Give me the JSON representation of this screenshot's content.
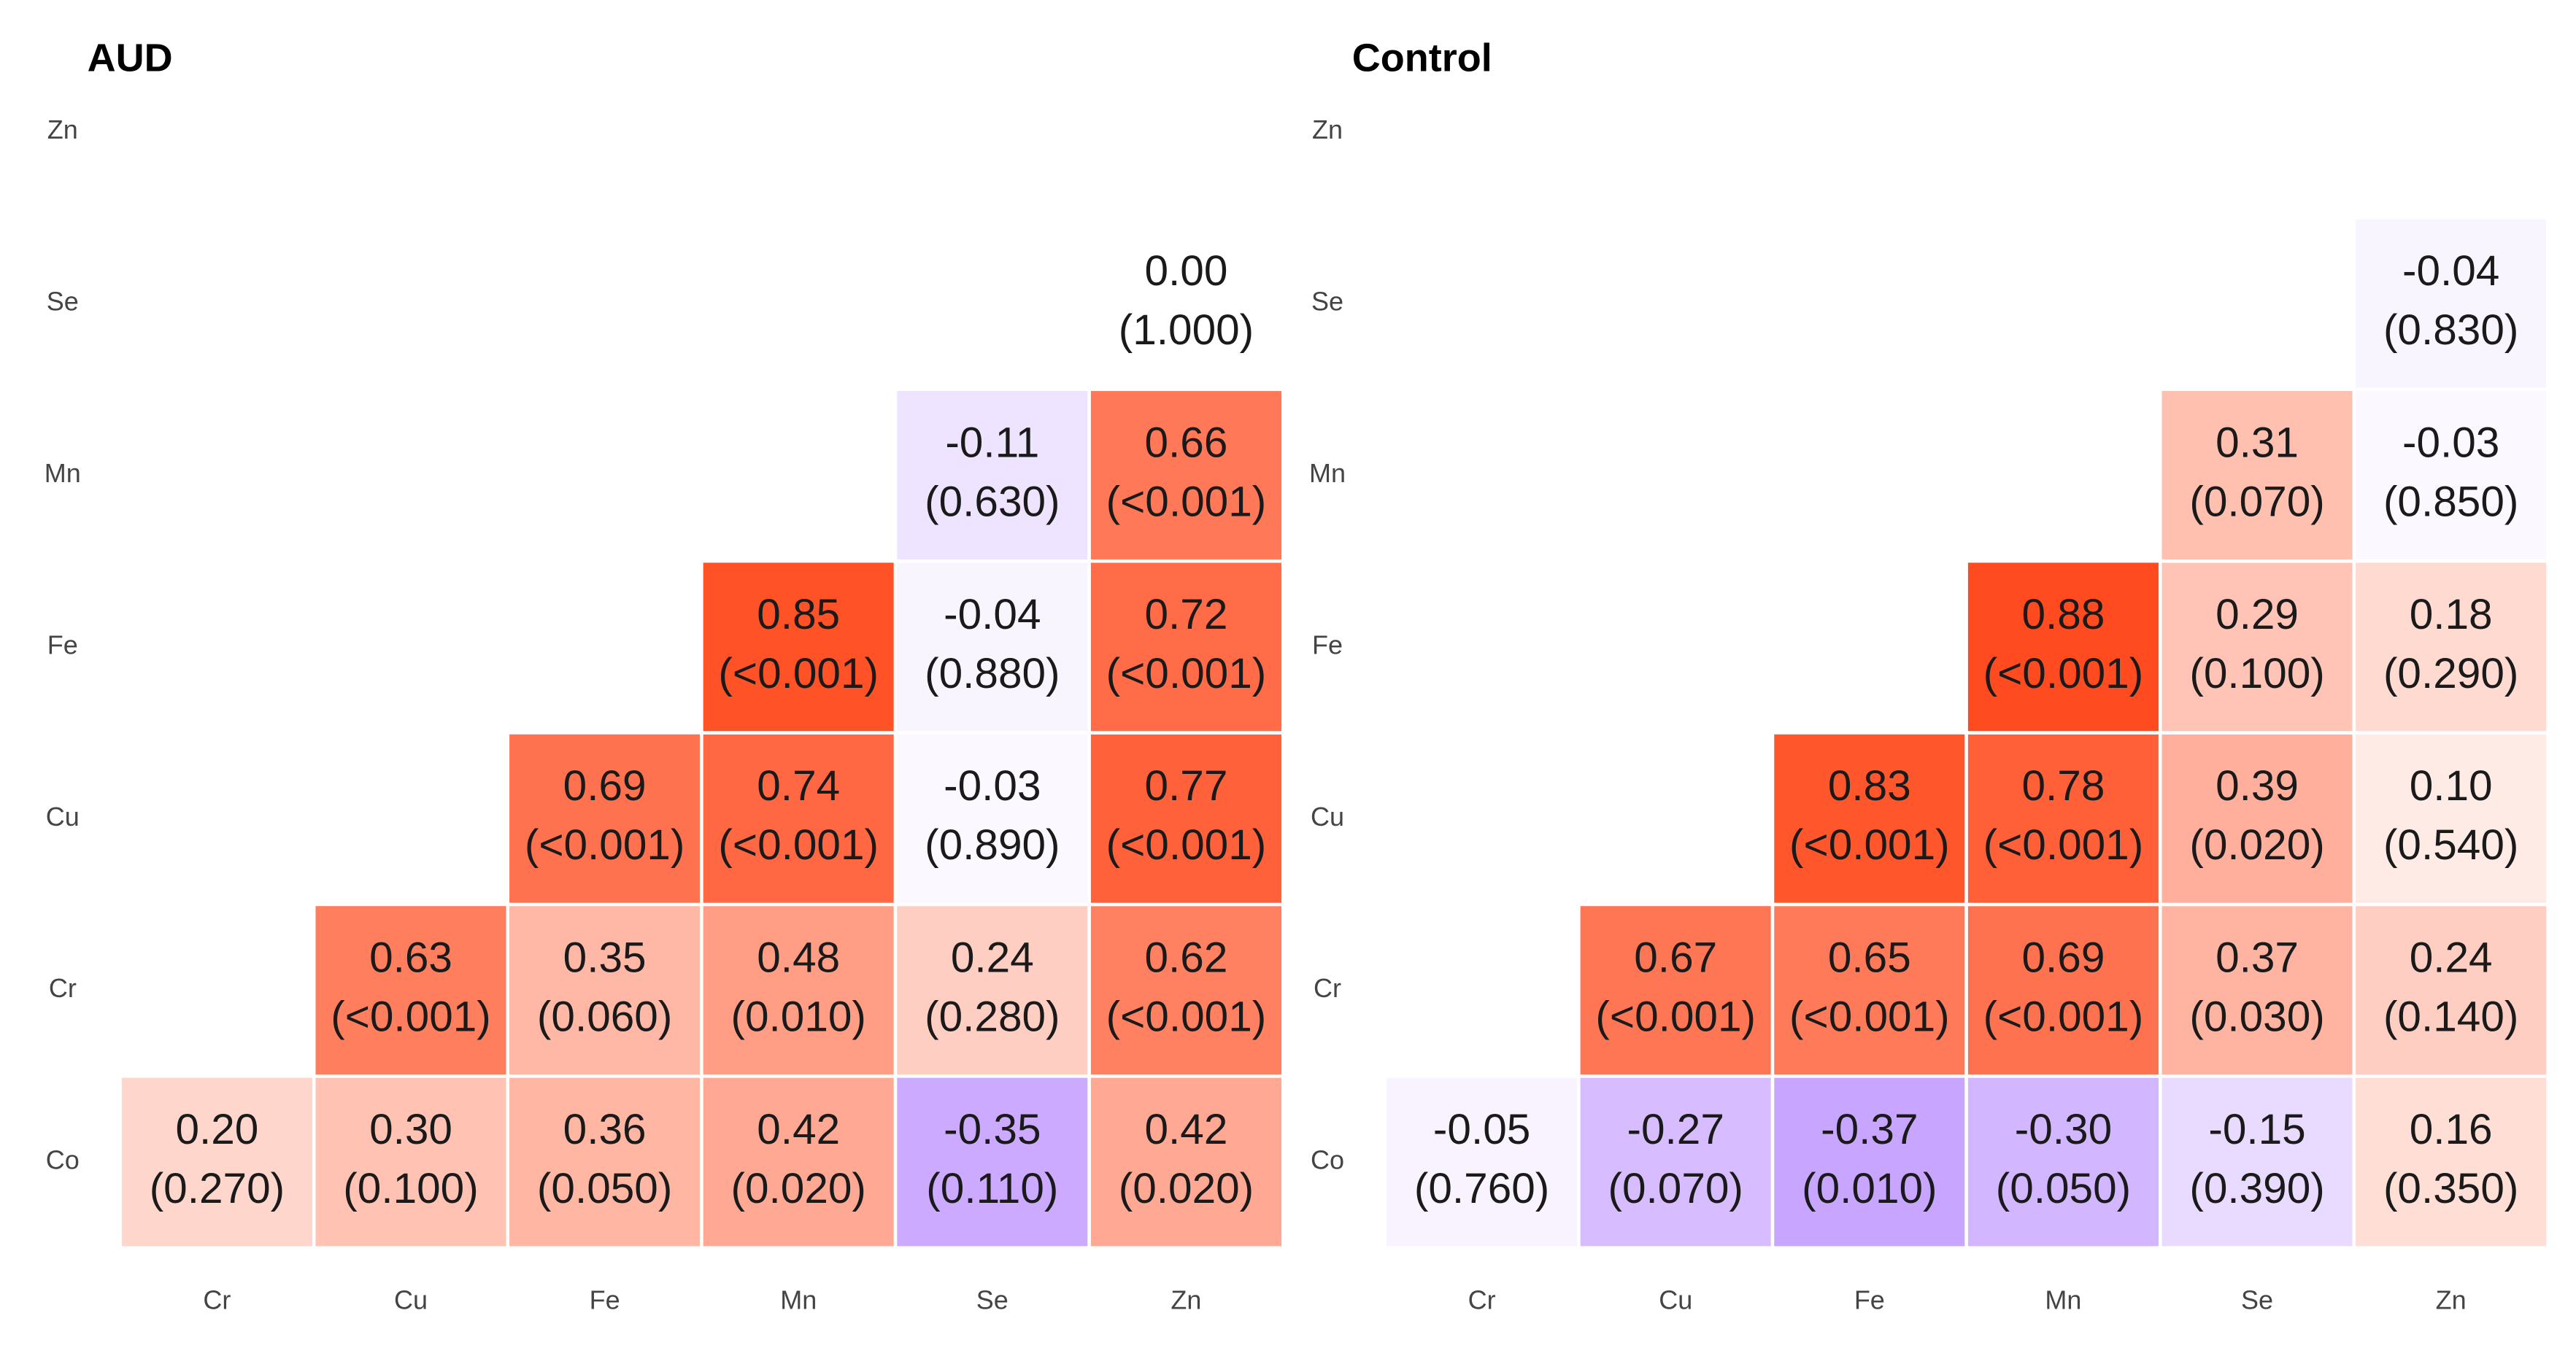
{
  "chart_data": [
    {
      "type": "heatmap",
      "title": "AUD",
      "x": [
        "Cr",
        "Cu",
        "Fe",
        "Mn",
        "Se",
        "Zn"
      ],
      "y": [
        "Co",
        "Cr",
        "Cu",
        "Fe",
        "Mn",
        "Se",
        "Zn"
      ],
      "values": [
        [
          0.2,
          0.3,
          0.36,
          0.42,
          -0.35,
          0.42
        ],
        [
          null,
          0.63,
          0.35,
          0.48,
          0.24,
          0.62
        ],
        [
          null,
          null,
          0.69,
          0.74,
          -0.03,
          0.77
        ],
        [
          null,
          null,
          null,
          0.85,
          -0.04,
          0.72
        ],
        [
          null,
          null,
          null,
          null,
          -0.11,
          0.66
        ],
        [
          null,
          null,
          null,
          null,
          null,
          0.0
        ],
        [
          null,
          null,
          null,
          null,
          null,
          null
        ]
      ],
      "value_labels": [
        [
          "0.20",
          "0.30",
          "0.36",
          "0.42",
          "-0.35",
          "0.42"
        ],
        [
          null,
          "0.63",
          "0.35",
          "0.48",
          "0.24",
          "0.62"
        ],
        [
          null,
          null,
          "0.69",
          "0.74",
          "-0.03",
          "0.77"
        ],
        [
          null,
          null,
          null,
          "0.85",
          "-0.04",
          "0.72"
        ],
        [
          null,
          null,
          null,
          null,
          "-0.11",
          "0.66"
        ],
        [
          null,
          null,
          null,
          null,
          null,
          "0.00"
        ],
        [
          null,
          null,
          null,
          null,
          null,
          null
        ]
      ],
      "p_labels": [
        [
          "(0.270)",
          "(0.100)",
          "(0.050)",
          "(0.020)",
          "(0.110)",
          "(0.020)"
        ],
        [
          null,
          "(<0.001)",
          "(0.060)",
          "(0.010)",
          "(0.280)",
          "(<0.001)"
        ],
        [
          null,
          null,
          "(<0.001)",
          "(<0.001)",
          "(0.890)",
          "(<0.001)"
        ],
        [
          null,
          null,
          null,
          "(<0.001)",
          "(0.880)",
          "(<0.001)"
        ],
        [
          null,
          null,
          null,
          null,
          "(0.630)",
          "(<0.001)"
        ],
        [
          null,
          null,
          null,
          null,
          null,
          "(1.000)"
        ],
        [
          null,
          null,
          null,
          null,
          null,
          null
        ]
      ],
      "zlim": [
        -1,
        1
      ],
      "low_color": "#6a0cff",
      "high_color": "#ff3300"
    },
    {
      "type": "heatmap",
      "title": "Control",
      "x": [
        "Cr",
        "Cu",
        "Fe",
        "Mn",
        "Se",
        "Zn"
      ],
      "y": [
        "Co",
        "Cr",
        "Cu",
        "Fe",
        "Mn",
        "Se",
        "Zn"
      ],
      "values": [
        [
          -0.05,
          -0.27,
          -0.37,
          -0.3,
          -0.15,
          0.16
        ],
        [
          null,
          0.67,
          0.65,
          0.69,
          0.37,
          0.24
        ],
        [
          null,
          null,
          0.83,
          0.78,
          0.39,
          0.1
        ],
        [
          null,
          null,
          null,
          0.88,
          0.29,
          0.18
        ],
        [
          null,
          null,
          null,
          null,
          0.31,
          -0.03
        ],
        [
          null,
          null,
          null,
          null,
          null,
          -0.04
        ],
        [
          null,
          null,
          null,
          null,
          null,
          null
        ]
      ],
      "value_labels": [
        [
          "-0.05",
          "-0.27",
          "-0.37",
          "-0.30",
          "-0.15",
          "0.16"
        ],
        [
          null,
          "0.67",
          "0.65",
          "0.69",
          "0.37",
          "0.24"
        ],
        [
          null,
          null,
          "0.83",
          "0.78",
          "0.39",
          "0.10"
        ],
        [
          null,
          null,
          null,
          "0.88",
          "0.29",
          "0.18"
        ],
        [
          null,
          null,
          null,
          null,
          "0.31",
          "-0.03"
        ],
        [
          null,
          null,
          null,
          null,
          null,
          "-0.04"
        ],
        [
          null,
          null,
          null,
          null,
          null,
          null
        ]
      ],
      "p_labels": [
        [
          "(0.760)",
          "(0.070)",
          "(0.010)",
          "(0.050)",
          "(0.390)",
          "(0.350)"
        ],
        [
          null,
          "(<0.001)",
          "(<0.001)",
          "(<0.001)",
          "(0.030)",
          "(0.140)"
        ],
        [
          null,
          null,
          "(<0.001)",
          "(<0.001)",
          "(0.020)",
          "(0.540)"
        ],
        [
          null,
          null,
          null,
          "(<0.001)",
          "(0.100)",
          "(0.290)"
        ],
        [
          null,
          null,
          null,
          null,
          "(0.070)",
          "(0.850)"
        ],
        [
          null,
          null,
          null,
          null,
          null,
          "(0.830)"
        ],
        [
          null,
          null,
          null,
          null,
          null,
          null
        ]
      ],
      "zlim": [
        -1,
        1
      ],
      "low_color": "#6a0cff",
      "high_color": "#ff3300"
    }
  ]
}
